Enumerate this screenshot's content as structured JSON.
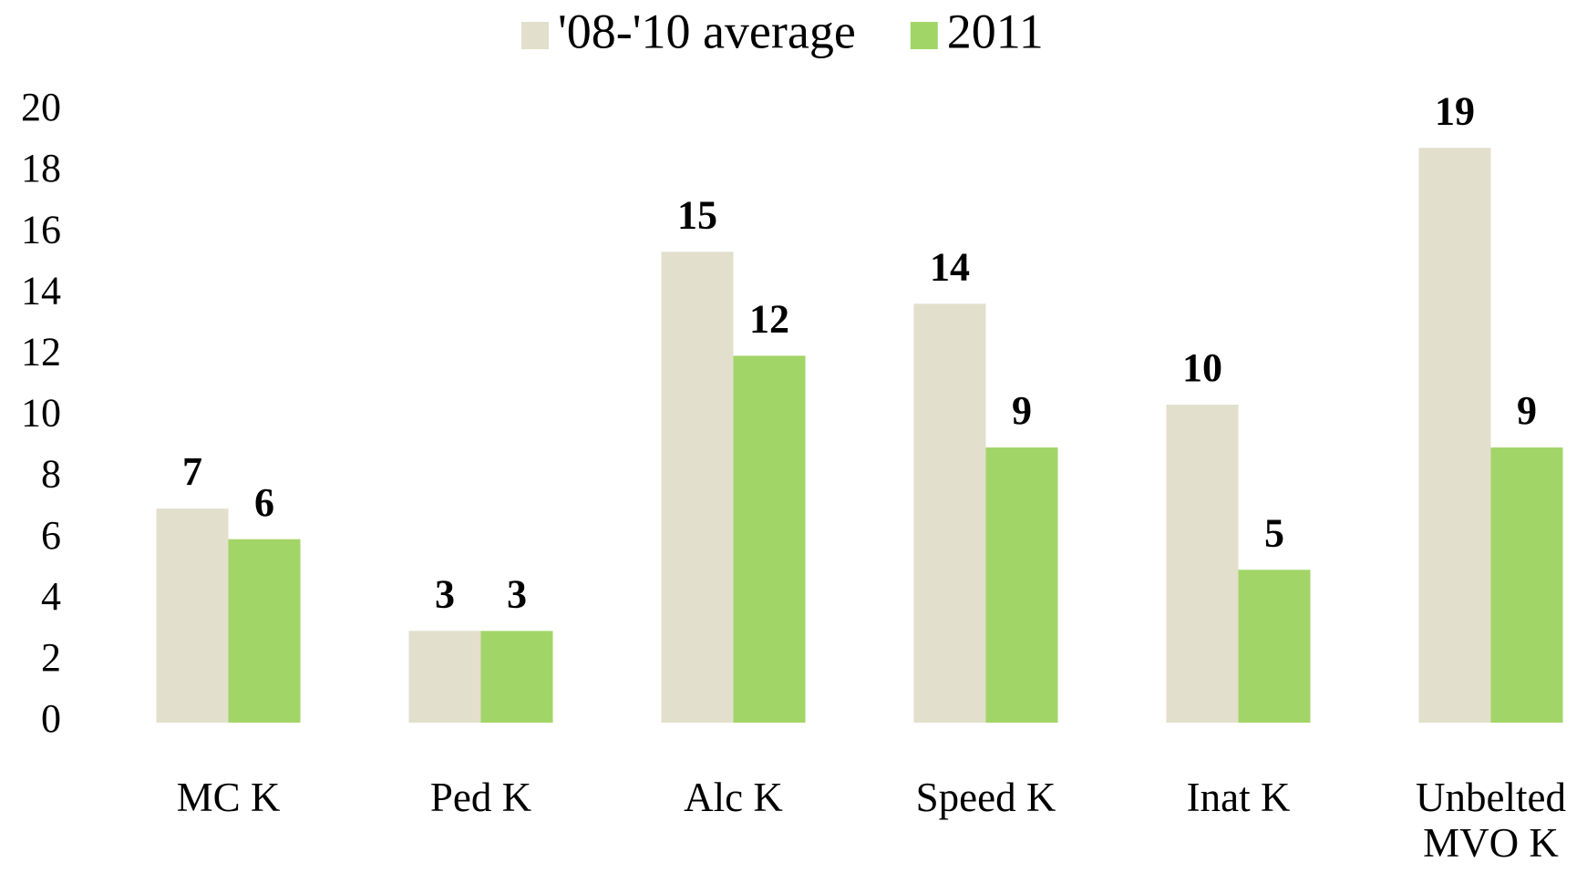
{
  "chart_data": {
    "type": "bar",
    "categories": [
      "MC K",
      "Ped K",
      "Alc K",
      "Speed K",
      "Inat K",
      "Unbelted MVO K"
    ],
    "series": [
      {
        "name": "'08-'10 average",
        "color": "#e2dfcc",
        "values": [
          7,
          3,
          15.4,
          13.7,
          10.4,
          18.8
        ],
        "value_labels": [
          "7",
          "3",
          "15",
          "14",
          "10",
          "19"
        ]
      },
      {
        "name": "2011",
        "color": "#a2d567",
        "values": [
          6,
          3,
          12,
          9,
          5,
          9
        ]
      }
    ],
    "ylim": [
      0,
      20
    ],
    "yticks": [
      0,
      2,
      4,
      6,
      8,
      10,
      12,
      14,
      16,
      18,
      20
    ],
    "grid": false,
    "legend": "top"
  }
}
